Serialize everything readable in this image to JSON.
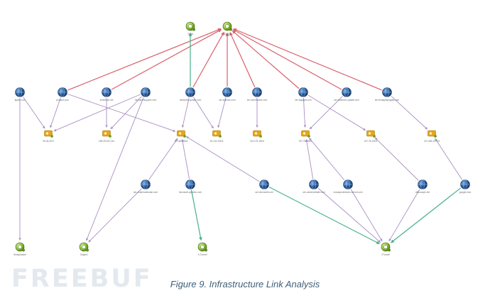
{
  "caption": "Figure 9. Infrastructure Link Analysis",
  "watermark": "FREEBUF",
  "colors": {
    "red_edge": "#d9606a",
    "green_edge": "#49b08a",
    "purple_edge": "#aa8fc2",
    "globe": "#2b5d9e",
    "server": "#e5a71a",
    "target": "#8dbf3a"
  },
  "nodes": [
    {
      "id": "t1",
      "kind": "target",
      "label": "Yodar"
    },
    {
      "id": "t2",
      "kind": "target",
      "label": "Sofacy"
    },
    {
      "id": "t3",
      "kind": "target",
      "label": "Seduploader"
    },
    {
      "id": "t4",
      "kind": "target",
      "label": "XAgent"
    },
    {
      "id": "t5",
      "kind": "target",
      "label": "X-Tunnel"
    },
    {
      "id": "t6",
      "kind": "target",
      "label": "XTunnel"
    },
    {
      "id": "d1",
      "kind": "globe",
      "label": "apple.com"
    },
    {
      "id": "d2",
      "kind": "globe",
      "label": "product.com"
    },
    {
      "id": "d3",
      "kind": "globe",
      "label": "smsbrazil.net"
    },
    {
      "id": "d4",
      "kind": "globe",
      "label": "microsoftsupport.com"
    },
    {
      "id": "d5",
      "kind": "globe",
      "label": "networks-update.com"
    },
    {
      "id": "d6",
      "kind": "globe",
      "label": "ser-adblock.com"
    },
    {
      "id": "d7",
      "kind": "globe",
      "label": "ser-securitcase.com"
    },
    {
      "id": "d8",
      "kind": "globe",
      "label": "ser-bigsight.com"
    },
    {
      "id": "d9",
      "kind": "globe",
      "label": "ser-windows-update.com"
    },
    {
      "id": "d10",
      "kind": "globe",
      "label": "ser-theapplepagate.com"
    },
    {
      "id": "d11",
      "kind": "globe",
      "label": "ser-chaiterantecate.com"
    },
    {
      "id": "d12",
      "kind": "globe",
      "label": "microsoft-updatec.com"
    },
    {
      "id": "d13",
      "kind": "globe",
      "label": "ser-microsoft.com"
    },
    {
      "id": "d14",
      "kind": "globe",
      "label": "ser-universeldate.com"
    },
    {
      "id": "d15",
      "kind": "globe",
      "label": "marcaprotections-server.com"
    },
    {
      "id": "d16",
      "kind": "globe",
      "label": "dbtoscape.net"
    },
    {
      "id": "d17",
      "kind": "globe",
      "label": "google.new"
    },
    {
      "id": "s1",
      "kind": "server",
      "label": "95.46.26.8"
    },
    {
      "id": "s2",
      "kind": "server",
      "label": "185.25.491.144"
    },
    {
      "id": "s3",
      "kind": "server",
      "label": "80.182.155.8"
    },
    {
      "id": "s4",
      "kind": "server",
      "label": "81.142.206.8"
    },
    {
      "id": "s5",
      "kind": "server",
      "label": "213.176.180.6"
    },
    {
      "id": "s6",
      "kind": "server",
      "label": "237.78.248.6"
    },
    {
      "id": "s7",
      "kind": "server",
      "label": "247.78.236.6"
    },
    {
      "id": "s8",
      "kind": "server",
      "label": "212.285.1975.6"
    }
  ],
  "edges": [
    {
      "from": "d2",
      "to": "t2",
      "color": "red"
    },
    {
      "from": "d3",
      "to": "t2",
      "color": "red"
    },
    {
      "from": "d5",
      "to": "t2",
      "color": "red"
    },
    {
      "from": "d6",
      "to": "t2",
      "color": "red"
    },
    {
      "from": "d7",
      "to": "t2",
      "color": "red"
    },
    {
      "from": "d8",
      "to": "t2",
      "color": "red"
    },
    {
      "from": "d9",
      "to": "t2",
      "color": "red"
    },
    {
      "from": "d10",
      "to": "t2",
      "color": "red"
    },
    {
      "from": "d5",
      "to": "t1",
      "color": "green"
    },
    {
      "from": "d12",
      "to": "t5",
      "color": "green"
    },
    {
      "from": "d13",
      "to": "t6",
      "color": "green"
    },
    {
      "from": "d17",
      "to": "t6",
      "color": "green"
    },
    {
      "from": "d1",
      "to": "t3",
      "color": "purple"
    },
    {
      "from": "d1",
      "to": "s1",
      "color": "purple"
    },
    {
      "from": "d2",
      "to": "s1",
      "color": "purple"
    },
    {
      "from": "d2",
      "to": "s3",
      "color": "purple"
    },
    {
      "from": "d3",
      "to": "s2",
      "color": "purple"
    },
    {
      "from": "d4",
      "to": "s1",
      "color": "purple"
    },
    {
      "from": "d4",
      "to": "s2",
      "color": "purple"
    },
    {
      "from": "d4",
      "to": "t4",
      "color": "purple"
    },
    {
      "from": "d5",
      "to": "s3",
      "color": "purple"
    },
    {
      "from": "d5",
      "to": "s4",
      "color": "purple"
    },
    {
      "from": "d6",
      "to": "s4",
      "color": "purple"
    },
    {
      "from": "d7",
      "to": "s5",
      "color": "purple"
    },
    {
      "from": "d8",
      "to": "s6",
      "color": "purple"
    },
    {
      "from": "d8",
      "to": "s7",
      "color": "purple"
    },
    {
      "from": "d9",
      "to": "s6",
      "color": "purple"
    },
    {
      "from": "d10",
      "to": "s8",
      "color": "purple"
    },
    {
      "from": "d11",
      "to": "s3",
      "color": "purple"
    },
    {
      "from": "d11",
      "to": "t4",
      "color": "purple"
    },
    {
      "from": "d12",
      "to": "s3",
      "color": "purple"
    },
    {
      "from": "d13",
      "to": "s3",
      "color": "purple"
    },
    {
      "from": "d14",
      "to": "s6",
      "color": "purple"
    },
    {
      "from": "d14",
      "to": "t6",
      "color": "purple"
    },
    {
      "from": "d15",
      "to": "s6",
      "color": "purple"
    },
    {
      "from": "d15",
      "to": "t6",
      "color": "purple"
    },
    {
      "from": "d16",
      "to": "s7",
      "color": "purple"
    },
    {
      "from": "d16",
      "to": "t6",
      "color": "purple"
    },
    {
      "from": "d17",
      "to": "s8",
      "color": "purple"
    }
  ]
}
